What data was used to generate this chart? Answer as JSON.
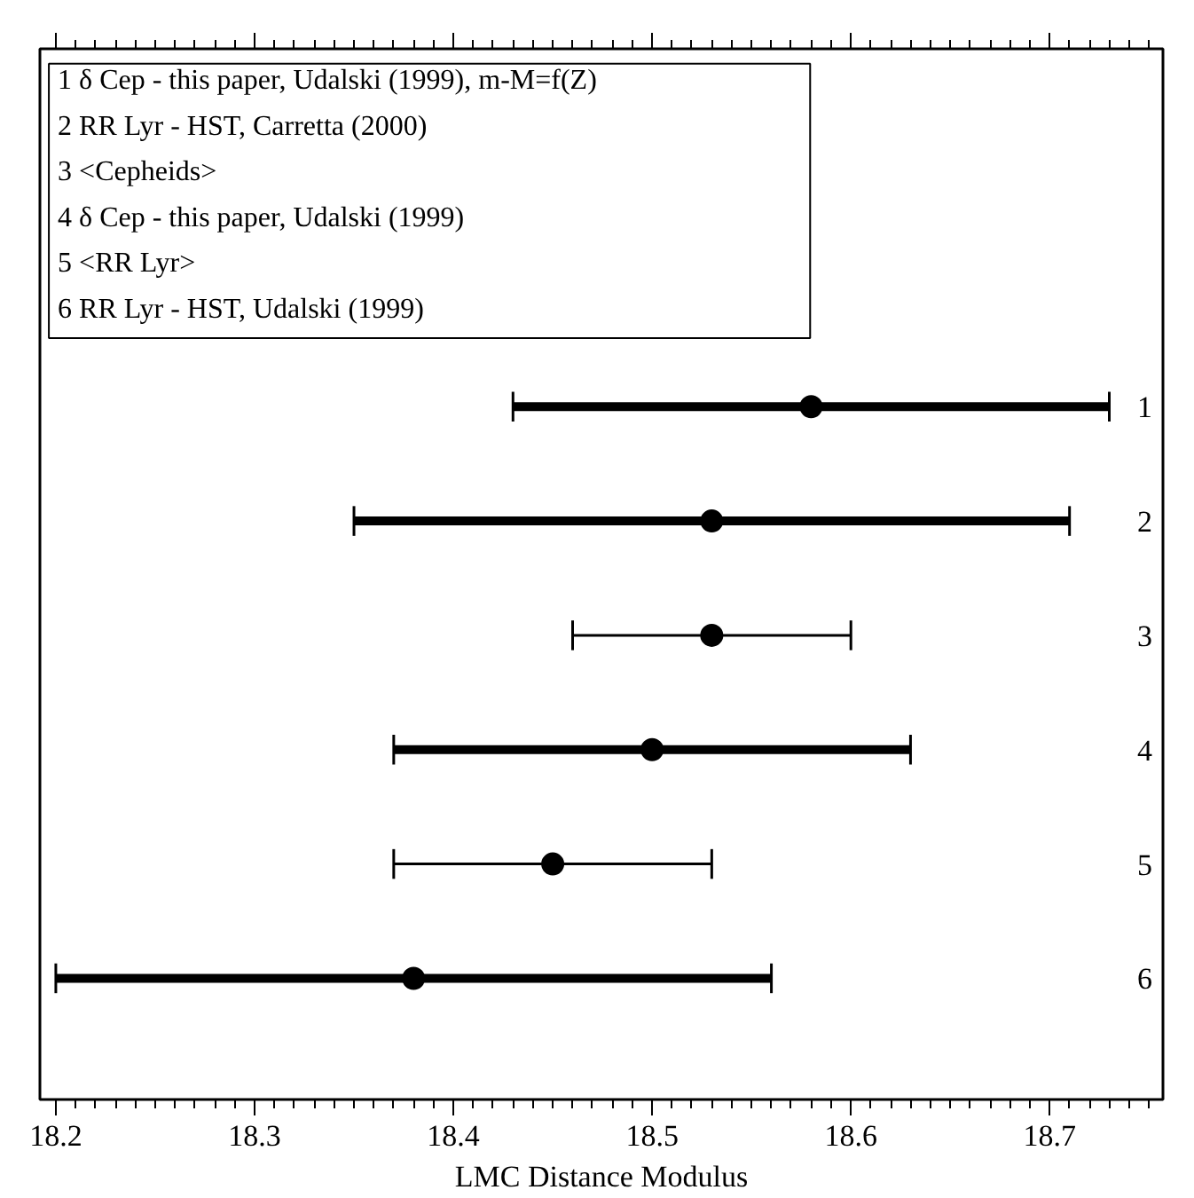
{
  "chart_data": {
    "type": "scatter",
    "orientation": "horizontal",
    "xlabel": "LMC Distance Modulus",
    "categories": [
      "1",
      "2",
      "3",
      "4",
      "5",
      "6"
    ],
    "series": [
      {
        "color": "#000000",
        "values": [
          18.58,
          18.53,
          null,
          18.5,
          null,
          18.38
        ],
        "errors": [
          0.15,
          0.18,
          null,
          0.13,
          null,
          0.18
        ]
      },
      {
        "color": "#000000",
        "values": [
          null,
          null,
          18.53,
          null,
          18.45,
          null
        ],
        "errors": [
          null,
          null,
          0.07,
          null,
          0.08,
          null
        ]
      }
    ],
    "xlim": [
      18.192,
      18.757
    ],
    "xticks": [
      18.2,
      18.3,
      18.4,
      18.5,
      18.6,
      18.7
    ],
    "marker": "circle",
    "grid": false,
    "annotations": [
      "1  δ Cep    - this paper, Udalski (1999), m-M=f(Z)",
      "2  RR Lyr - HST, Carretta (2000)",
      "3  <Cepheids>",
      "4  δ Cep    - this paper, Udalski (1999)",
      "5  <RR Lyr>",
      "6  RR Lyr - HST, Udalski (1999)"
    ]
  }
}
